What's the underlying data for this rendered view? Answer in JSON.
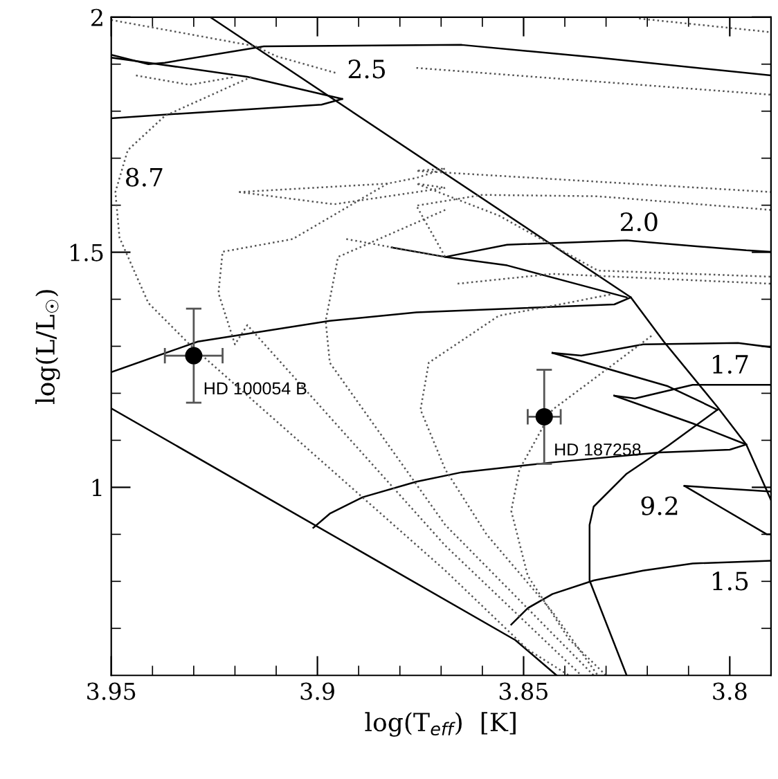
{
  "chart_data": {
    "type": "line",
    "xlabel": "log(T$_{eff}$)  [K]",
    "ylabel": "log(L/L$_{☉}$)",
    "xlim": [
      3.95,
      3.79
    ],
    "ylim": [
      0.6,
      2.0
    ],
    "xticks": [
      3.95,
      {
        "value": 3.94,
        "label": null
      },
      {
        "value": 3.93,
        "label": null
      },
      {
        "value": 3.92,
        "label": null
      },
      {
        "value": 3.91,
        "label": null
      },
      3.9,
      {
        "value": 3.89,
        "label": null
      },
      {
        "value": 3.88,
        "label": null
      },
      {
        "value": 3.87,
        "label": null
      },
      {
        "value": 3.86,
        "label": null
      },
      3.85,
      {
        "value": 3.84,
        "label": null
      },
      {
        "value": 3.83,
        "label": null
      },
      {
        "value": 3.82,
        "label": null
      },
      {
        "value": 3.81,
        "label": null
      },
      3.8
    ],
    "yticks": [
      {
        "value": 0.7,
        "label": null
      },
      {
        "value": 0.8,
        "label": null
      },
      {
        "value": 0.9,
        "label": null
      },
      1,
      {
        "value": 1.1,
        "label": null
      },
      {
        "value": 1.2,
        "label": null
      },
      {
        "value": 1.3,
        "label": null
      },
      {
        "value": 1.4,
        "label": null
      },
      1.5,
      {
        "value": 1.6,
        "label": null
      },
      {
        "value": 1.7,
        "label": null
      },
      {
        "value": 1.8,
        "label": null
      },
      {
        "value": 1.9,
        "label": null
      },
      2
    ],
    "grid": false,
    "legend": false,
    "series": [
      {
        "color": "#000000",
        "line_style": "solid",
        "x": [
          3.95,
          3.941,
          3.937,
          3.913,
          3.865,
          3.832,
          3.79
        ],
        "values": [
          1.92,
          1.9,
          1.903,
          1.938,
          1.941,
          1.914,
          1.876
        ]
      },
      {
        "color": "#000000",
        "line_style": "solid",
        "x": [
          3.95,
          3.941,
          3.917,
          3.894
        ],
        "values": [
          1.914,
          1.903,
          1.873,
          1.826
        ]
      },
      {
        "color": "#000000",
        "line_style": "solid",
        "x": [
          3.95,
          3.931,
          3.899,
          3.894
        ],
        "values": [
          1.785,
          1.796,
          1.814,
          1.826
        ]
      },
      {
        "color": "#000000",
        "line_style": "solid",
        "x": [
          3.926,
          3.824,
          3.816,
          3.803,
          3.796,
          3.79
        ],
        "values": [
          2.0,
          1.404,
          1.31,
          1.171,
          1.091,
          0.973
        ]
      },
      {
        "color": "#000000",
        "line_style": "solid",
        "x": [
          3.882,
          3.869,
          3.854,
          3.825,
          3.796,
          3.79
        ],
        "values": [
          1.51,
          1.49,
          1.516,
          1.525,
          1.504,
          1.501
        ]
      },
      {
        "color": "#000000",
        "line_style": "solid",
        "x": [
          3.869,
          3.854,
          3.825
        ],
        "values": [
          1.49,
          1.472,
          1.404
        ]
      },
      {
        "color": "#000000",
        "line_style": "solid",
        "x": [
          3.95,
          3.929,
          3.897,
          3.876,
          3.828,
          3.824
        ],
        "values": [
          1.245,
          1.31,
          1.354,
          1.372,
          1.389,
          1.404
        ]
      },
      {
        "color": "#000000",
        "line_style": "solid",
        "x": [
          3.843,
          3.836,
          3.821,
          3.798,
          3.79
        ],
        "values": [
          1.286,
          1.28,
          1.304,
          1.307,
          1.298
        ]
      },
      {
        "color": "#000000",
        "line_style": "solid",
        "x": [
          3.843,
          3.815,
          3.803
        ],
        "values": [
          1.286,
          1.215,
          1.165
        ]
      },
      {
        "color": "#000000",
        "line_style": "solid",
        "x": [
          3.828,
          3.823,
          3.809,
          3.79
        ],
        "values": [
          1.195,
          1.189,
          1.218,
          1.218
        ]
      },
      {
        "color": "#000000",
        "line_style": "solid",
        "x": [
          3.828,
          3.809,
          3.796
        ],
        "values": [
          1.195,
          1.136,
          1.091
        ]
      },
      {
        "color": "#000000",
        "line_style": "solid",
        "x": [
          3.901,
          3.897,
          3.889,
          3.876,
          3.865,
          3.843,
          3.817,
          3.8,
          3.796
        ],
        "values": [
          0.914,
          0.944,
          0.979,
          1.012,
          1.032,
          1.053,
          1.074,
          1.08,
          1.091
        ]
      },
      {
        "color": "#000000",
        "line_style": "solid",
        "x": [
          3.811,
          3.79
        ],
        "values": [
          1.003,
          0.991
        ]
      },
      {
        "color": "#000000",
        "line_style": "solid",
        "x": [
          3.811,
          3.791,
          3.79
        ],
        "values": [
          1.003,
          0.9,
          0.9
        ]
      },
      {
        "color": "#000000",
        "line_style": "solid",
        "x": [
          3.853,
          3.849,
          3.843,
          3.833,
          3.821,
          3.809,
          3.79
        ],
        "values": [
          0.708,
          0.743,
          0.773,
          0.802,
          0.823,
          0.838,
          0.844
        ]
      },
      {
        "color": "#000000",
        "line_style": "solid",
        "x": [
          3.95,
          3.852,
          3.842
        ],
        "values": [
          1.168,
          0.675,
          0.6
        ]
      },
      {
        "color": "#000000",
        "line_style": "solid",
        "x": [
          3.825,
          3.834,
          3.834,
          3.833,
          3.825,
          3.815,
          3.803
        ],
        "values": [
          0.6,
          0.802,
          0.92,
          0.959,
          1.029,
          1.088,
          1.165
        ]
      },
      {
        "color": "#555555",
        "line_style": "dotted",
        "x": [
          3.95,
          3.915,
          3.91,
          3.895
        ],
        "values": [
          1.994,
          1.938,
          1.917,
          1.88
        ]
      },
      {
        "color": "#555555",
        "line_style": "dotted",
        "x": [
          3.944,
          3.931,
          3.92,
          3.885,
          3.876,
          3.79
        ],
        "values": [
          1.876,
          1.856,
          1.873,
          null,
          1.892,
          1.835
        ]
      },
      {
        "color": "#555555",
        "line_style": "dotted",
        "x": [
          3.822,
          3.79
        ],
        "values": [
          1.997,
          1.968
        ]
      },
      {
        "color": "#555555",
        "line_style": "dotted",
        "x": [
          3.916,
          3.937,
          3.946,
          3.949,
          3.948,
          3.941,
          3.931,
          3.869,
          3.849,
          3.839
        ],
        "values": [
          1.873,
          1.79,
          1.717,
          1.628,
          1.531,
          1.392,
          1.304,
          0.823,
          0.655,
          0.6
        ]
      },
      {
        "color": "#555555",
        "line_style": "dotted",
        "x": [
          3.919,
          3.896,
          3.869,
          3.876,
          3.856,
          3.832,
          3.79
        ],
        "values": [
          1.628,
          1.602,
          1.637,
          1.646,
          1.578,
          1.461,
          1.448
        ]
      },
      {
        "color": "#555555",
        "line_style": "dotted",
        "x": [
          3.919,
          3.883,
          3.876,
          3.869,
          3.876,
          3.79
        ],
        "values": [
          1.628,
          1.646,
          1.658,
          1.678,
          1.673,
          1.628
        ]
      },
      {
        "color": "#555555",
        "line_style": "dotted",
        "x": [
          3.883,
          3.906,
          3.923,
          3.924,
          3.92,
          3.917,
          3.869,
          3.836
        ],
        "values": [
          1.646,
          1.528,
          1.501,
          1.413,
          1.304,
          1.345,
          0.876,
          0.6
        ]
      },
      {
        "color": "#555555",
        "line_style": "dotted",
        "x": [
          3.869,
          3.895,
          3.898,
          3.897,
          3.869,
          3.833
        ],
        "values": [
          1.59,
          1.49,
          1.354,
          1.265,
          0.92,
          0.6
        ]
      },
      {
        "color": "#555555",
        "line_style": "dotted",
        "x": [
          3.893,
          3.869,
          3.876,
          3.86,
          3.832,
          3.79
        ],
        "values": [
          1.528,
          1.49,
          1.599,
          1.622,
          1.619,
          1.59
        ]
      },
      {
        "color": "#555555",
        "line_style": "dotted",
        "x": [
          3.866,
          3.843,
          3.79
        ],
        "values": [
          1.433,
          1.454,
          1.433
        ]
      },
      {
        "color": "#555555",
        "line_style": "dotted",
        "x": [
          3.829,
          3.843,
          3.856,
          3.873,
          3.875,
          3.869,
          3.859,
          3.843,
          3.832
        ],
        "values": [
          1.41,
          1.386,
          1.365,
          1.265,
          1.165,
          1.038,
          0.9,
          0.735,
          0.6
        ]
      },
      {
        "color": "#555555",
        "line_style": "dotted",
        "x": [
          3.819,
          3.843,
          3.851,
          3.853,
          3.849,
          3.839,
          3.83
        ],
        "values": [
          1.322,
          1.165,
          1.038,
          0.95,
          0.812,
          0.677,
          0.6
        ]
      },
      {
        "type": "scatter",
        "color": "#000000",
        "marker": "circle",
        "x": [
          3.93
        ],
        "values": [
          1.28
        ],
        "errors": [
          0.1
        ],
        "xerrors": [
          0.007
        ]
      },
      {
        "type": "scatter",
        "color": "#000000",
        "marker": "circle",
        "x": [
          3.845
        ],
        "values": [
          1.15
        ],
        "errors": [
          0.1
        ],
        "xerrors": [
          0.004
        ]
      }
    ],
    "annotations": [
      {
        "text": "HD 100054 B",
        "x": 3.93,
        "y": 1.28
      },
      {
        "text": "HD 187258",
        "x": 3.845,
        "y": 1.15
      },
      {
        "text": "2.5",
        "x": 3.888,
        "y": 1.885
      },
      {
        "text": "2.0",
        "x": 3.822,
        "y": 1.56
      },
      {
        "text": "1.7",
        "x": 3.8,
        "y": 1.257
      },
      {
        "text": "1.5",
        "x": 3.8,
        "y": 0.796
      },
      {
        "text": "8.7",
        "x": 3.942,
        "y": 1.655
      },
      {
        "text": "9.2",
        "x": 3.817,
        "y": 0.956
      }
    ]
  }
}
